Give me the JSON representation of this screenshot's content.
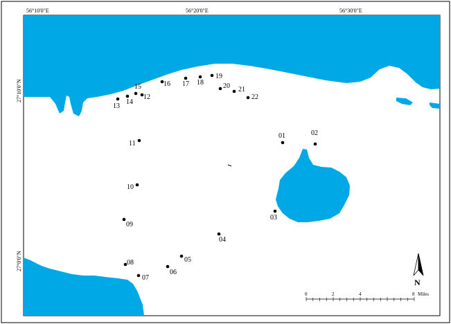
{
  "coordinate_labels": {
    "top_left": "56°10'0\"E",
    "top_middle": "56°20'0\"E",
    "top_right": "56°30'0\"E",
    "left_upper": "27°10'0\"N",
    "left_lower": "27°0'0\"N"
  },
  "colors": {
    "water": "#00a9e6",
    "land": "#ffffff",
    "outline": "#000000"
  },
  "stations": [
    {
      "id": "01",
      "label": "01"
    },
    {
      "id": "02",
      "label": "02"
    },
    {
      "id": "03",
      "label": "03"
    },
    {
      "id": "04",
      "label": "04"
    },
    {
      "id": "05",
      "label": "05"
    },
    {
      "id": "06",
      "label": "06"
    },
    {
      "id": "07",
      "label": "07"
    },
    {
      "id": "08",
      "label": "08"
    },
    {
      "id": "09",
      "label": "09"
    },
    {
      "id": "10",
      "label": "10"
    },
    {
      "id": "11",
      "label": "11"
    },
    {
      "id": "12",
      "label": "12"
    },
    {
      "id": "13",
      "label": "13"
    },
    {
      "id": "14",
      "label": "14"
    },
    {
      "id": "15",
      "label": "15"
    },
    {
      "id": "16",
      "label": "16"
    },
    {
      "id": "17",
      "label": "17"
    },
    {
      "id": "18",
      "label": "18"
    },
    {
      "id": "19",
      "label": "19"
    },
    {
      "id": "20",
      "label": "20"
    },
    {
      "id": "21",
      "label": "21"
    },
    {
      "id": "22",
      "label": "22"
    }
  ],
  "north_arrow": {
    "label": "N",
    "icon": "north-arrow-icon"
  },
  "scale_bar": {
    "ticks": [
      "0",
      "2",
      "4",
      "8"
    ],
    "unit": "Miles"
  }
}
